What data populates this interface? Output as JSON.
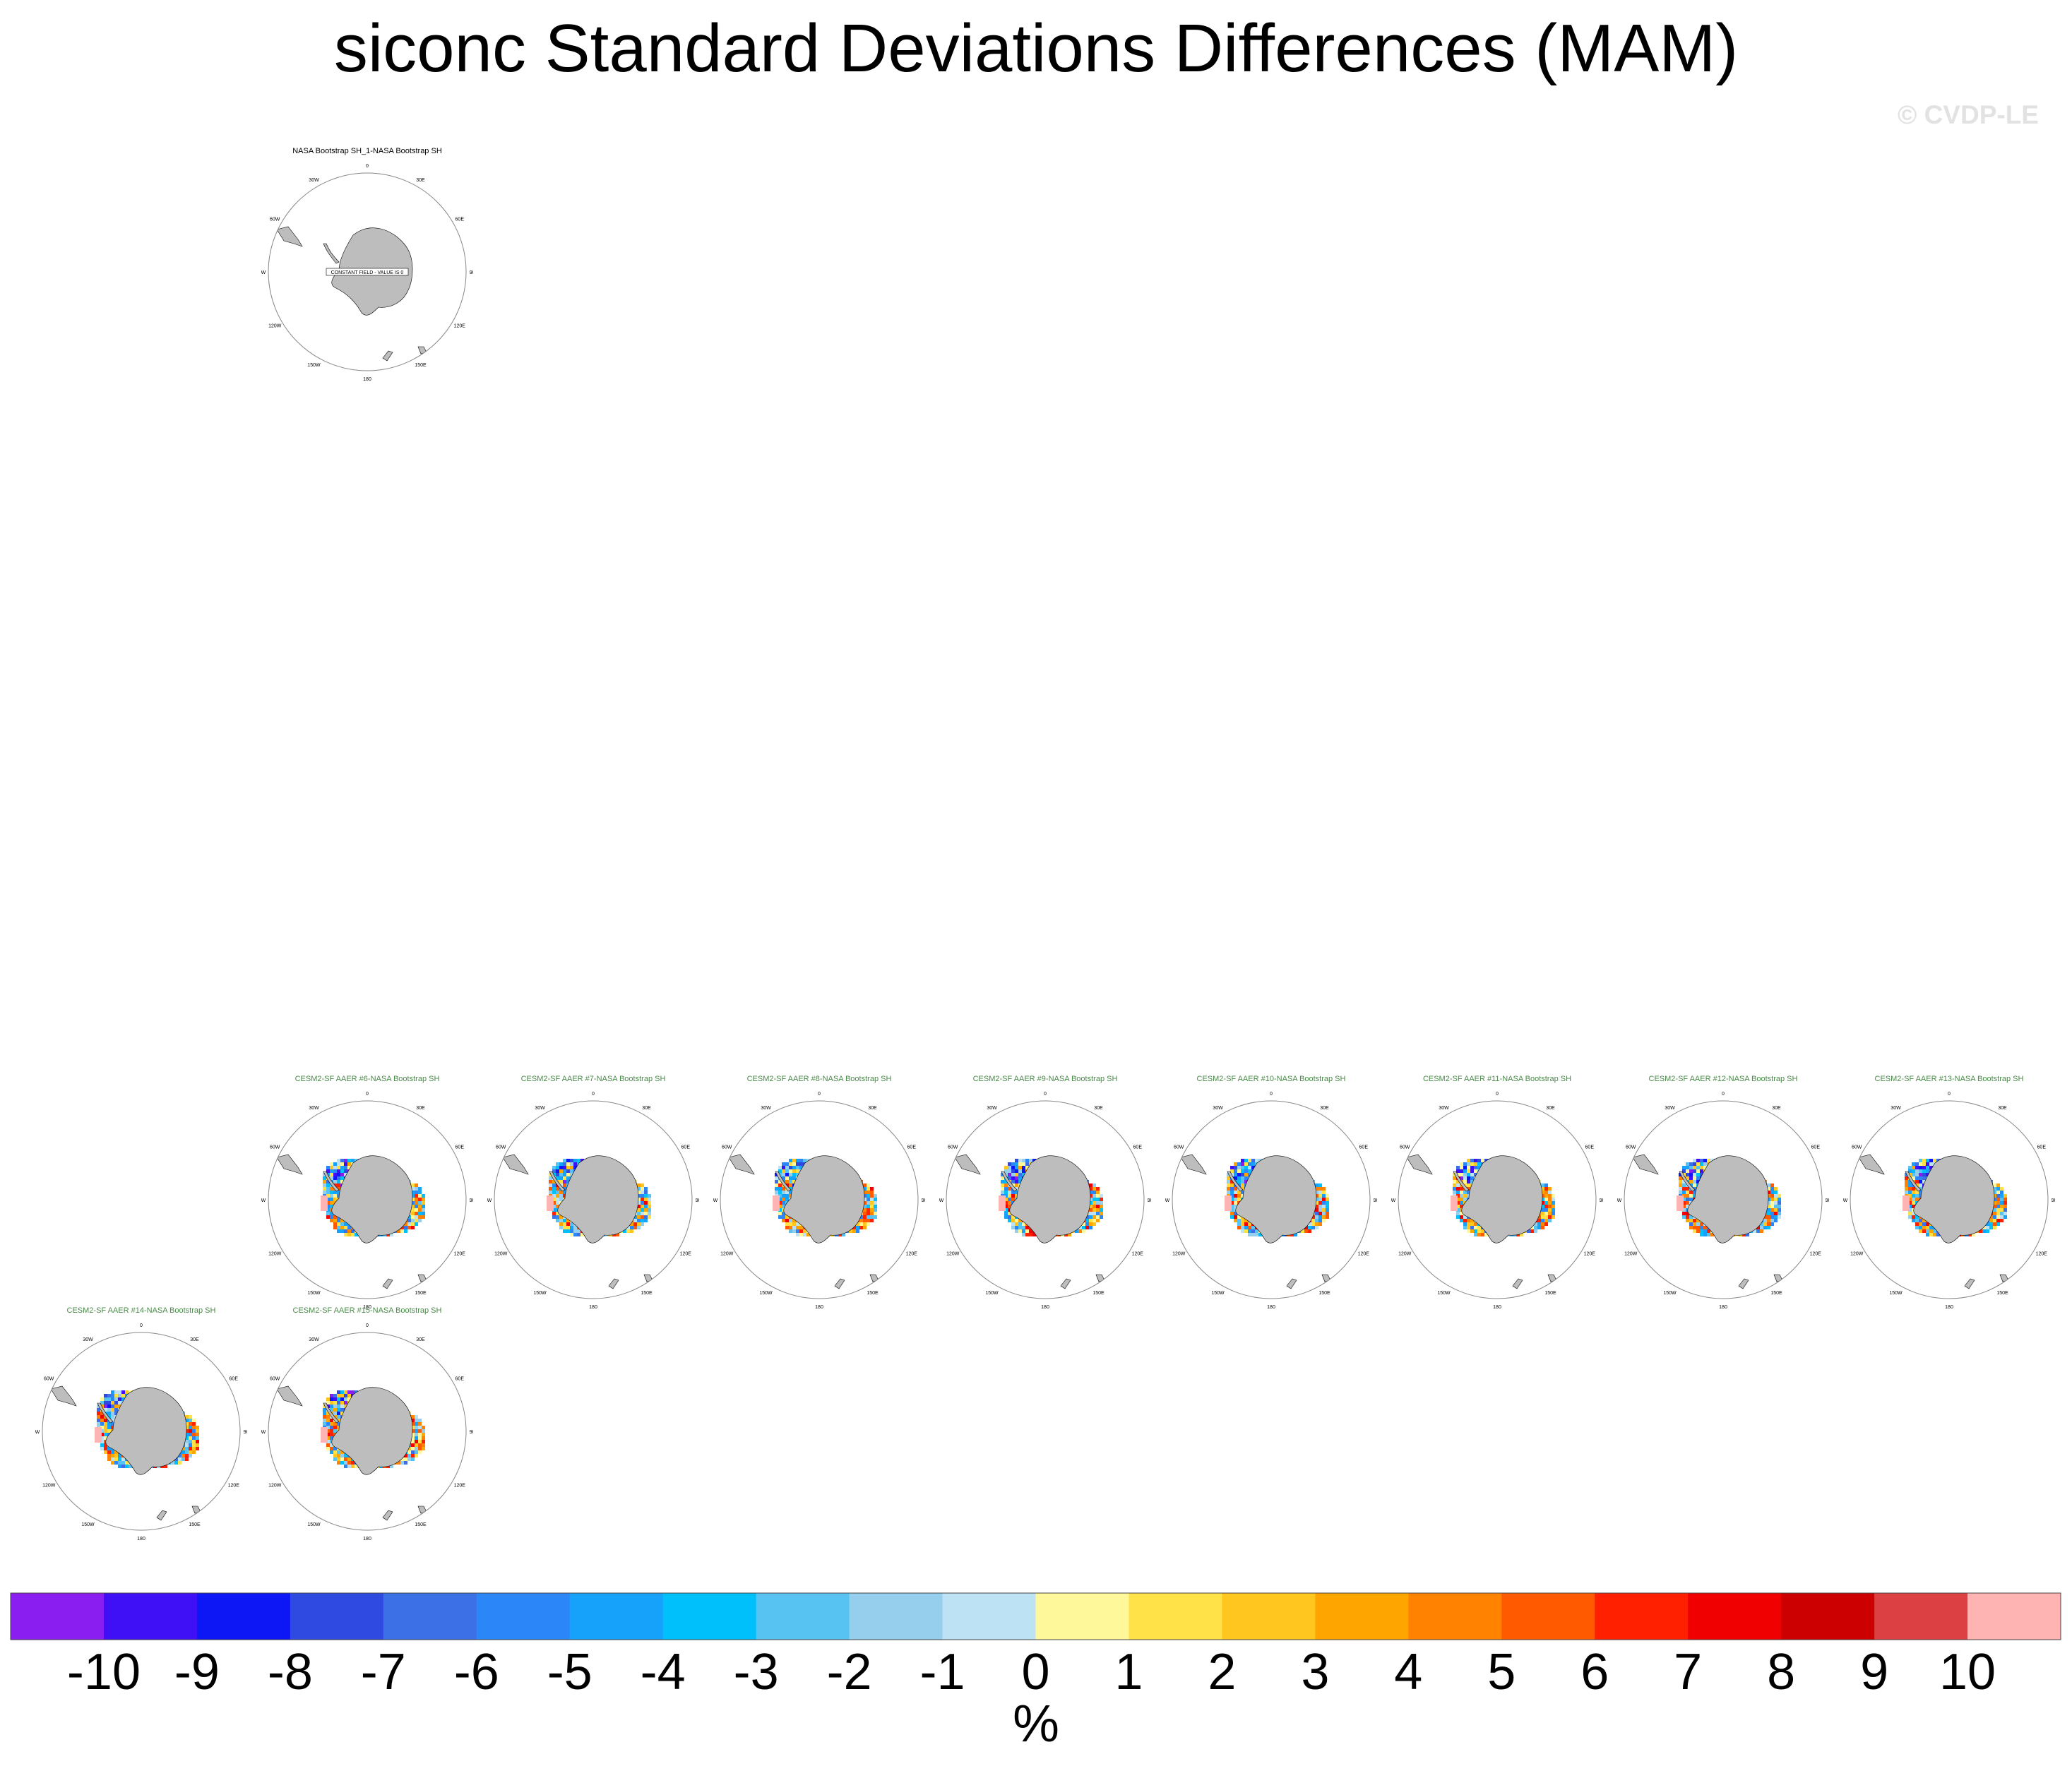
{
  "title": "siconc Standard Deviations Differences (MAM)",
  "watermark": "© CVDP-LE",
  "panels": [
    {
      "title": "NASA Bootstrap SH_1-NASA Bootstrap SH",
      "title_color": "#000000",
      "constant_field": true,
      "note": "CONSTANT FIELD - VALUE IS 0"
    },
    {
      "title": "CESM2-SF AAER #6-NASA Bootstrap SH",
      "title_color": "#4a8a4a",
      "seed": 6
    },
    {
      "title": "CESM2-SF AAER #7-NASA Bootstrap SH",
      "title_color": "#4a8a4a",
      "seed": 7
    },
    {
      "title": "CESM2-SF AAER #8-NASA Bootstrap SH",
      "title_color": "#4a8a4a",
      "seed": 8
    },
    {
      "title": "CESM2-SF AAER #9-NASA Bootstrap SH",
      "title_color": "#4a8a4a",
      "seed": 9
    },
    {
      "title": "CESM2-SF AAER #10-NASA Bootstrap SH",
      "title_color": "#4a8a4a",
      "seed": 10
    },
    {
      "title": "CESM2-SF AAER #11-NASA Bootstrap SH",
      "title_color": "#4a8a4a",
      "seed": 11
    },
    {
      "title": "CESM2-SF AAER #12-NASA Bootstrap SH",
      "title_color": "#4a8a4a",
      "seed": 12
    },
    {
      "title": "CESM2-SF AAER #13-NASA Bootstrap SH",
      "title_color": "#4a8a4a",
      "seed": 13
    },
    {
      "title": "CESM2-SF AAER #14-NASA Bootstrap SH",
      "title_color": "#4a8a4a",
      "seed": 14
    },
    {
      "title": "CESM2-SF AAER #15-NASA Bootstrap SH",
      "title_color": "#4a8a4a",
      "seed": 15
    }
  ],
  "map_labels": {
    "lon_0": "0",
    "lon_30w": "30W",
    "lon_30e": "30E",
    "lon_60w": "60W",
    "lon_60e": "60E",
    "lon_90w": "90W",
    "lon_90e": "90E",
    "lon_120w": "120W",
    "lon_120e": "120E",
    "lon_150w": "150W",
    "lon_150e": "150E",
    "lon_180": "180"
  },
  "colorbar": {
    "colors": [
      "#8a1ef0",
      "#3f10f5",
      "#0d16f5",
      "#2e4ae0",
      "#3c70e6",
      "#2b86f8",
      "#16a2fa",
      "#00c0fb",
      "#56c3f2",
      "#96cfee",
      "#bde2f4",
      "#fff89a",
      "#ffe248",
      "#ffc620",
      "#ffa500",
      "#ff8200",
      "#ff5a00",
      "#ff2000",
      "#f00000",
      "#cc0000",
      "#dc4043",
      "#ffb4b4"
    ],
    "labels": [
      "-10",
      "-9",
      "-8",
      "-7",
      "-6",
      "-5",
      "-4",
      "-3",
      "-2",
      "-1",
      "0",
      "1",
      "2",
      "3",
      "4",
      "5",
      "6",
      "7",
      "8",
      "9",
      "10"
    ],
    "units": "%"
  }
}
